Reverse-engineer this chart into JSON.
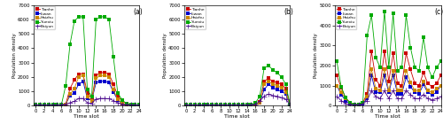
{
  "districts": [
    "Tianhe",
    "Liwan",
    "Haizhu",
    "Yuexiu",
    "Baiyun"
  ],
  "colors": [
    "#cc0000",
    "#0000cc",
    "#cc8800",
    "#00aa00",
    "#440088"
  ],
  "markers": [
    "s",
    "s",
    "s",
    "s",
    "+"
  ],
  "markersize": [
    2.5,
    2.5,
    2.5,
    2.5,
    4
  ],
  "linewidth": 0.6,
  "time_slots": [
    0,
    1,
    2,
    3,
    4,
    5,
    6,
    7,
    8,
    9,
    10,
    11,
    12,
    13,
    14,
    15,
    16,
    17,
    18,
    19,
    20,
    21,
    22,
    23,
    24
  ],
  "working": {
    "Tianhe": [
      50,
      50,
      50,
      50,
      50,
      50,
      50,
      100,
      1200,
      1800,
      2200,
      2200,
      900,
      500,
      2100,
      2300,
      2300,
      2200,
      1500,
      700,
      300,
      150,
      100,
      50,
      50
    ],
    "Liwan": [
      50,
      50,
      50,
      50,
      50,
      50,
      50,
      100,
      700,
      900,
      1500,
      1700,
      500,
      350,
      1600,
      1700,
      1700,
      1600,
      950,
      400,
      150,
      80,
      60,
      50,
      50
    ],
    "Haizhu": [
      50,
      50,
      50,
      50,
      50,
      50,
      50,
      100,
      800,
      1200,
      2000,
      2100,
      600,
      350,
      1900,
      2100,
      2100,
      2000,
      1100,
      450,
      150,
      80,
      60,
      50,
      50
    ],
    "Yuexiu": [
      50,
      50,
      50,
      50,
      50,
      50,
      50,
      1400,
      4300,
      5900,
      6200,
      6200,
      1100,
      650,
      6000,
      6200,
      6200,
      6000,
      3400,
      900,
      400,
      150,
      80,
      50,
      50
    ],
    "Baiyun": [
      50,
      50,
      50,
      50,
      50,
      50,
      50,
      100,
      200,
      300,
      500,
      500,
      200,
      150,
      450,
      500,
      500,
      480,
      350,
      200,
      100,
      60,
      50,
      50,
      50
    ]
  },
  "stay_home": {
    "Tianhe": [
      50,
      50,
      50,
      50,
      50,
      50,
      50,
      50,
      50,
      50,
      50,
      50,
      50,
      50,
      50,
      50,
      100,
      250,
      1700,
      1900,
      1700,
      1600,
      1500,
      1200,
      50
    ],
    "Liwan": [
      50,
      50,
      50,
      50,
      50,
      50,
      50,
      50,
      50,
      50,
      50,
      50,
      50,
      50,
      50,
      50,
      80,
      200,
      1100,
      1500,
      1250,
      1100,
      1000,
      800,
      50
    ],
    "Haizhu": [
      50,
      50,
      50,
      50,
      50,
      50,
      50,
      50,
      50,
      50,
      50,
      50,
      50,
      50,
      50,
      50,
      90,
      220,
      1500,
      1700,
      1500,
      1400,
      1250,
      950,
      50
    ],
    "Yuexiu": [
      50,
      50,
      50,
      50,
      50,
      50,
      50,
      50,
      50,
      50,
      50,
      50,
      50,
      50,
      50,
      50,
      200,
      650,
      2600,
      2800,
      2500,
      2300,
      2000,
      1500,
      50
    ],
    "Baiyun": [
      50,
      50,
      50,
      50,
      50,
      50,
      50,
      50,
      50,
      50,
      50,
      50,
      50,
      50,
      50,
      50,
      100,
      300,
      650,
      800,
      700,
      650,
      550,
      450,
      50
    ]
  },
  "socializing": {
    "Tianhe": [
      1500,
      900,
      400,
      150,
      50,
      50,
      150,
      600,
      2700,
      1300,
      1000,
      2700,
      1200,
      2600,
      1100,
      1000,
      2600,
      1800,
      1100,
      1000,
      1650,
      1100,
      950,
      1100,
      1500
    ],
    "Liwan": [
      1000,
      550,
      250,
      100,
      50,
      50,
      100,
      350,
      1500,
      650,
      650,
      1500,
      650,
      1500,
      600,
      600,
      1400,
      950,
      650,
      600,
      1050,
      650,
      550,
      650,
      1000
    ],
    "Haizhu": [
      1000,
      650,
      350,
      150,
      50,
      50,
      150,
      450,
      1800,
      850,
      750,
      1800,
      750,
      1750,
      750,
      750,
      1750,
      1150,
      750,
      750,
      1200,
      750,
      650,
      850,
      1000
    ],
    "Yuexiu": [
      2200,
      950,
      400,
      150,
      50,
      50,
      150,
      3500,
      4500,
      2400,
      1900,
      4700,
      1900,
      4600,
      1750,
      1900,
      4500,
      2900,
      1900,
      1750,
      3400,
      1900,
      1400,
      1900,
      2200
    ],
    "Baiyun": [
      450,
      250,
      100,
      50,
      50,
      50,
      80,
      250,
      750,
      450,
      350,
      750,
      350,
      750,
      350,
      350,
      750,
      550,
      350,
      350,
      550,
      350,
      280,
      350,
      450
    ]
  },
  "ylim_a": [
    0,
    7000
  ],
  "ylim_b": [
    0,
    7000
  ],
  "ylim_c": [
    0,
    5000
  ],
  "yticks_a": [
    0,
    1000,
    2000,
    3000,
    4000,
    5000,
    6000,
    7000
  ],
  "yticks_b": [
    0,
    1000,
    2000,
    3000,
    4000,
    5000,
    6000,
    7000
  ],
  "yticks_c": [
    0,
    1000,
    2000,
    3000,
    4000,
    5000
  ],
  "xticks": [
    0,
    2,
    4,
    6,
    8,
    10,
    12,
    14,
    16,
    18,
    20,
    22,
    24
  ],
  "xlabel": "Time slot",
  "ylabel": "Population density",
  "panel_labels": [
    "(a)",
    "(b)",
    "(c)"
  ],
  "figsize": [
    5.0,
    1.49
  ],
  "dpi": 100
}
